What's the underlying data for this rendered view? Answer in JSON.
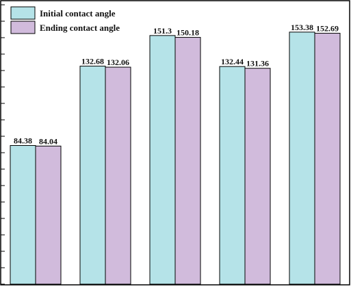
{
  "chart_data": {
    "type": "bar",
    "categories": [
      "",
      "",
      "",
      "",
      ""
    ],
    "series": [
      {
        "name": "Initial contact angle",
        "values": [
          84.38,
          132.68,
          151.3,
          132.44,
          153.38
        ],
        "color": "#b5e3e8"
      },
      {
        "name": "Ending contact angle",
        "values": [
          84.04,
          132.06,
          150.18,
          131.36,
          152.69
        ],
        "color": "#d1bbdc"
      }
    ],
    "data_labels": [
      [
        "84.38",
        "132.68",
        "151.3",
        "132.44",
        "153.38"
      ],
      [
        "84.04",
        "132.06",
        "150.18",
        "131.36",
        "152.69"
      ]
    ],
    "title": "",
    "xlabel": "",
    "ylabel": "",
    "ylim": [
      0,
      170
    ],
    "grid": false,
    "legend_position": "top-left",
    "axis_color": "#000000"
  }
}
